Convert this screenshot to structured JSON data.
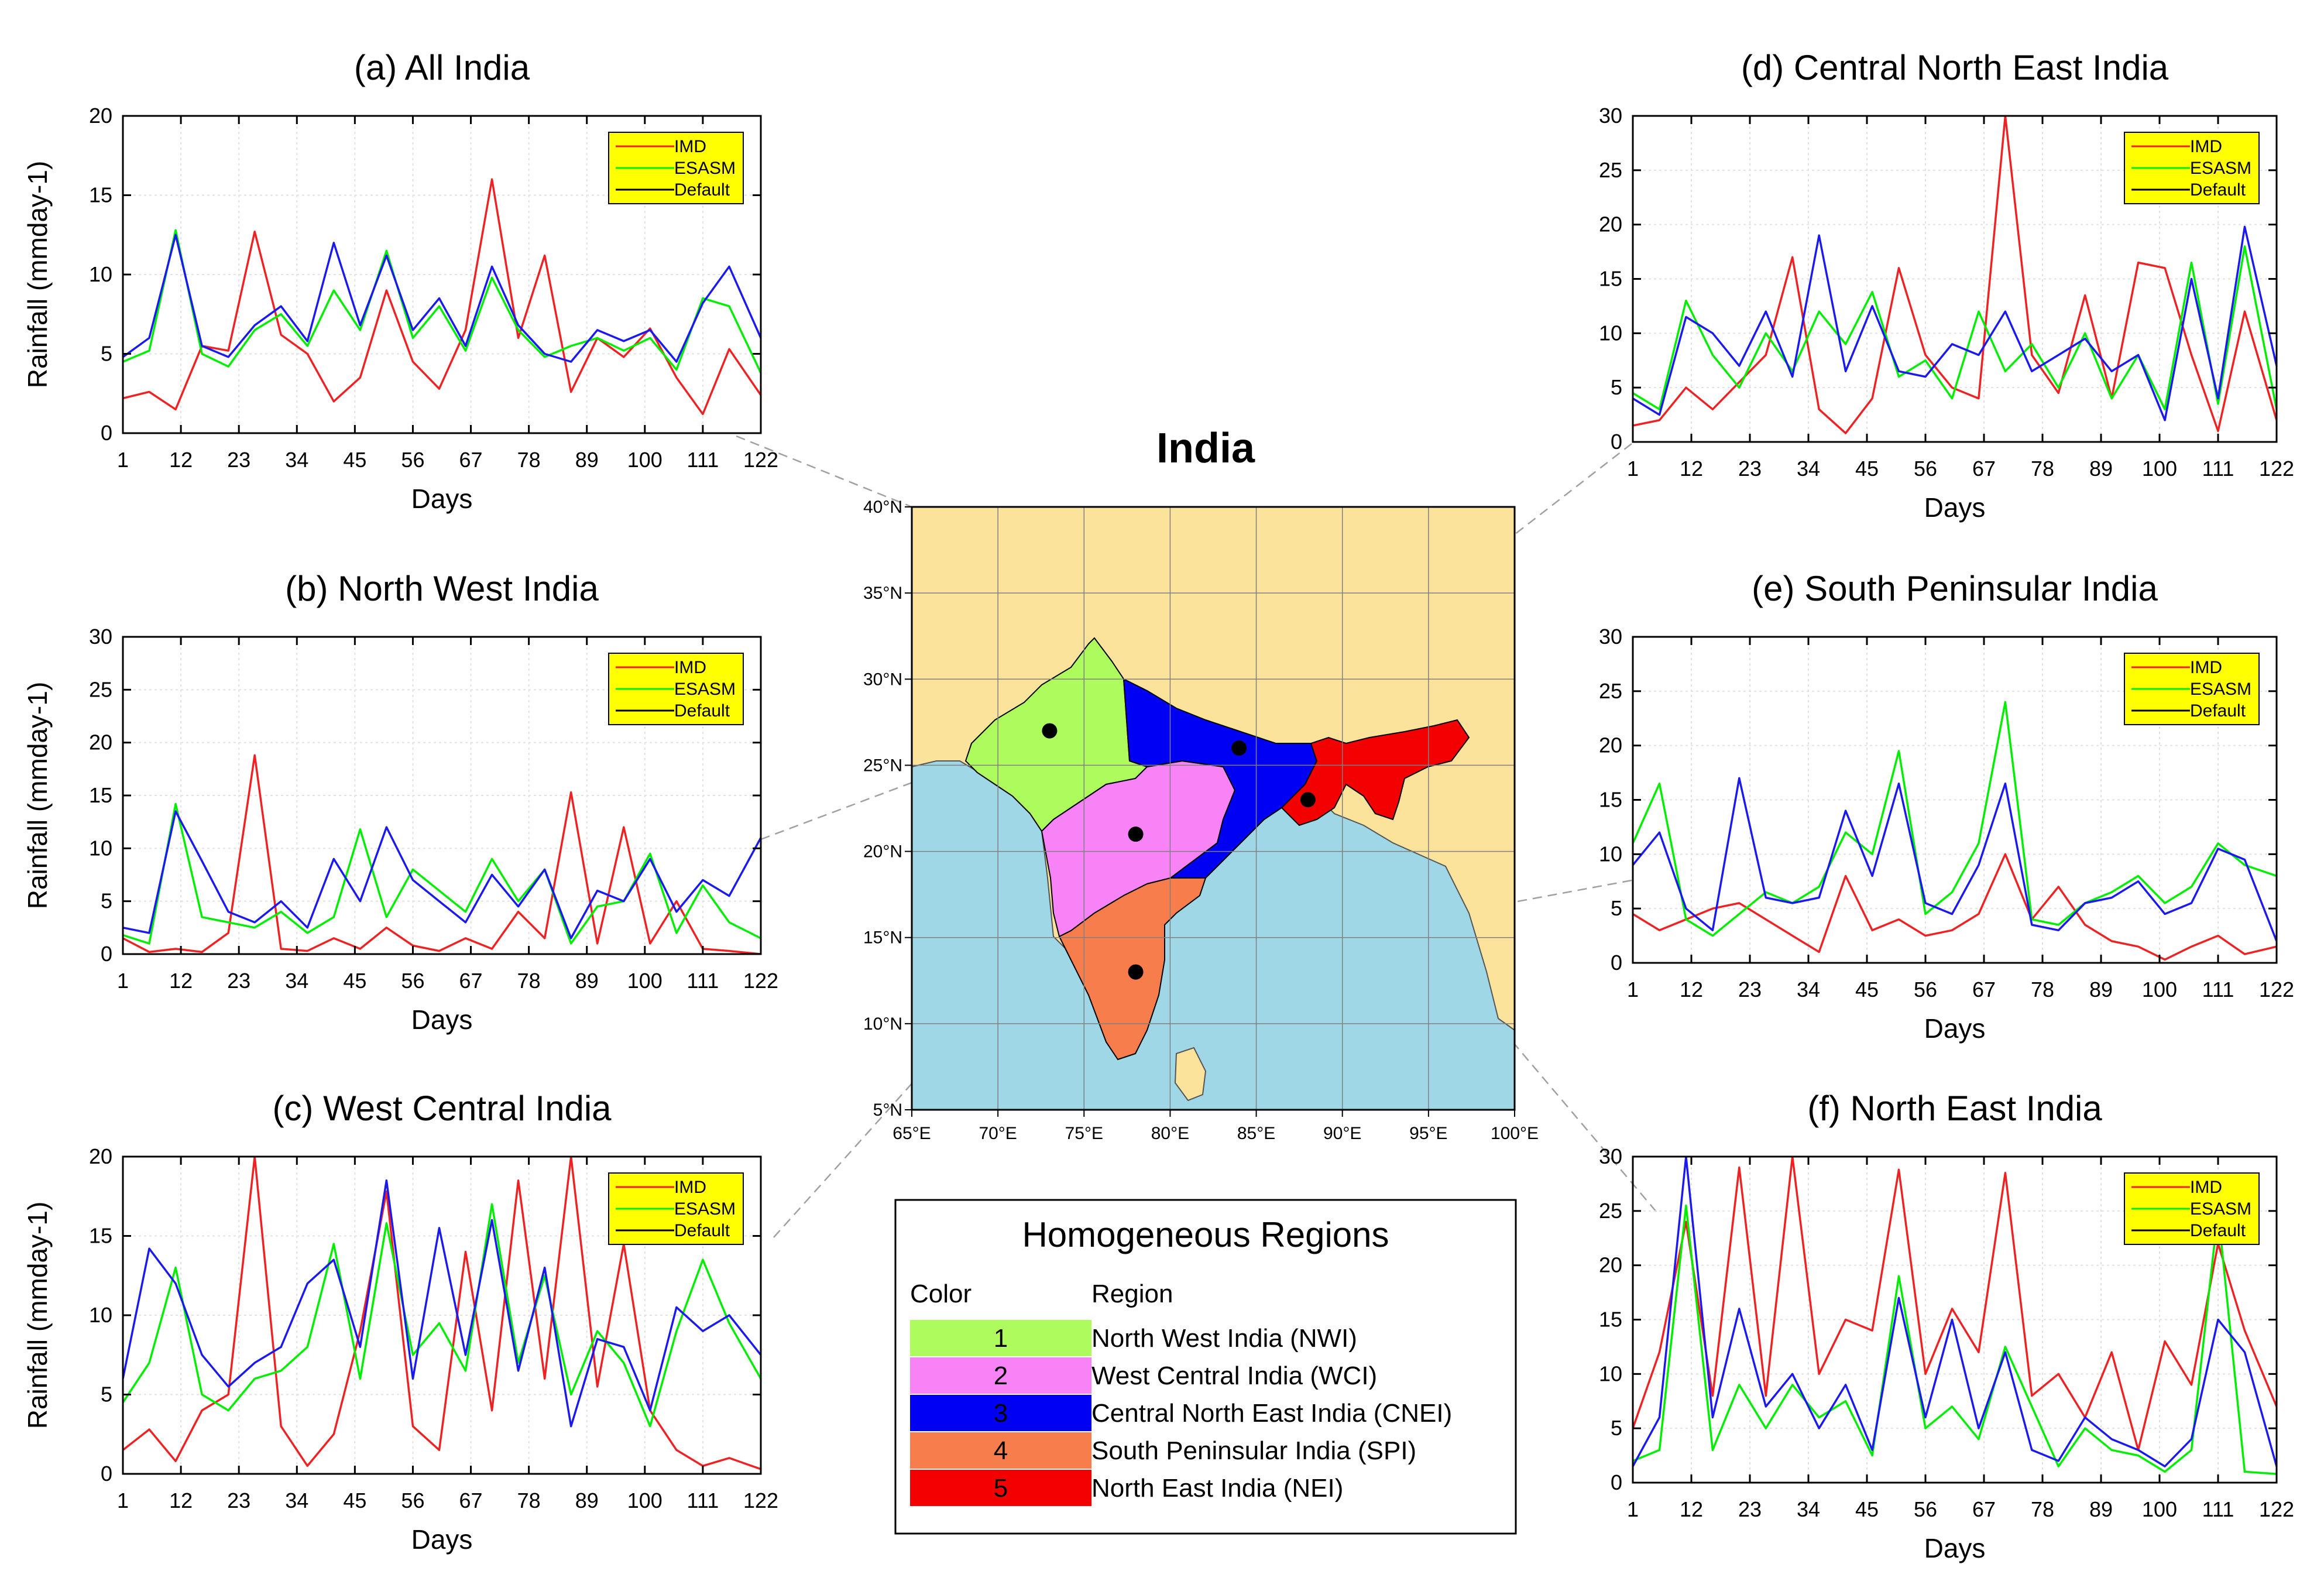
{
  "colors": {
    "imd": "#ee2222",
    "esasm": "#00ee00",
    "default": "#000000",
    "cnei_line": "#1a1aee",
    "legend_bg": "#ffff00",
    "land": "#fbe39c",
    "ocean": "#9fd7e6",
    "nwi": "#aefb5e",
    "wci": "#f783f7",
    "cnei": "#0000f2",
    "spi": "#f77d4d",
    "nei": "#f30000"
  },
  "legend": {
    "imd": "IMD",
    "esasm": "ESASM",
    "default": "Default"
  },
  "map": {
    "title": "India",
    "lon_labels": [
      "65°E",
      "70°E",
      "75°E",
      "80°E",
      "85°E",
      "90°E",
      "95°E",
      "100°E"
    ],
    "lat_labels": [
      "5°N",
      "10°N",
      "15°N",
      "20°N",
      "25°N",
      "30°N",
      "35°N",
      "40°N"
    ],
    "region_points": [
      {
        "region": "NWI",
        "lon": 73,
        "lat": 27
      },
      {
        "region": "WCI",
        "lon": 78,
        "lat": 21
      },
      {
        "region": "CNEI",
        "lon": 84,
        "lat": 26
      },
      {
        "region": "SPI",
        "lon": 78,
        "lat": 13
      },
      {
        "region": "NEI",
        "lon": 88,
        "lat": 23
      }
    ]
  },
  "regions_table": {
    "title": "Homogeneous Regions",
    "col_color": "Color",
    "col_region": "Region",
    "rows": [
      {
        "num": "1",
        "label": "North West India (NWI)",
        "color_key": "nwi"
      },
      {
        "num": "2",
        "label": "West Central India (WCI)",
        "color_key": "wci"
      },
      {
        "num": "3",
        "label": "Central North East India (CNEI)",
        "color_key": "cnei"
      },
      {
        "num": "4",
        "label": "South Peninsular India (SPI)",
        "color_key": "spi"
      },
      {
        "num": "5",
        "label": "North East India (NEI)",
        "color_key": "nei"
      }
    ]
  },
  "chart_data": [
    {
      "id": "a",
      "type": "line",
      "title": "(a) All India",
      "xlabel": "Days",
      "ylabel": "Rainfall (mmday-1)",
      "xlim": [
        1,
        122
      ],
      "ylim": [
        0,
        20
      ],
      "yticks": [
        0,
        5,
        10,
        15,
        20
      ],
      "xticks": [
        1,
        12,
        23,
        34,
        45,
        56,
        67,
        78,
        89,
        100,
        111,
        122
      ],
      "x": [
        1,
        6,
        11,
        16,
        21,
        26,
        31,
        36,
        41,
        46,
        51,
        56,
        61,
        66,
        71,
        76,
        81,
        86,
        91,
        96,
        101,
        106,
        111,
        116,
        122
      ],
      "series": [
        {
          "name": "IMD",
          "values": [
            2.2,
            2.6,
            1.5,
            5.5,
            5.2,
            12.7,
            6.2,
            5.0,
            2.0,
            3.5,
            9.0,
            4.5,
            2.8,
            6.5,
            16.0,
            6.0,
            11.2,
            2.6,
            6.0,
            4.8,
            6.6,
            3.5,
            1.2,
            5.3,
            2.4
          ]
        },
        {
          "name": "ESASM",
          "values": [
            4.5,
            5.2,
            12.8,
            5.0,
            4.2,
            6.5,
            7.5,
            5.5,
            9.0,
            6.5,
            11.5,
            6.0,
            8.0,
            5.2,
            9.8,
            6.5,
            4.8,
            5.5,
            6.0,
            5.2,
            6.0,
            4.0,
            8.5,
            8.0,
            3.8
          ]
        },
        {
          "name": "Default",
          "values": [
            4.8,
            6.0,
            12.5,
            5.5,
            4.8,
            6.8,
            8.0,
            5.8,
            12.0,
            6.8,
            11.2,
            6.5,
            8.5,
            5.5,
            10.5,
            6.8,
            5.0,
            4.5,
            6.5,
            5.8,
            6.5,
            4.5,
            8.2,
            10.5,
            6.0
          ]
        }
      ]
    },
    {
      "id": "b",
      "type": "line",
      "title": "(b) North West India",
      "xlabel": "Days",
      "ylabel": "Rainfall (mmday-1)",
      "xlim": [
        1,
        122
      ],
      "ylim": [
        0,
        30
      ],
      "yticks": [
        0,
        5,
        10,
        15,
        20,
        25,
        30
      ],
      "xticks": [
        1,
        12,
        23,
        34,
        45,
        56,
        67,
        78,
        89,
        100,
        111,
        122
      ],
      "x": [
        1,
        6,
        11,
        16,
        21,
        26,
        31,
        36,
        41,
        46,
        51,
        56,
        61,
        66,
        71,
        76,
        81,
        86,
        91,
        96,
        101,
        106,
        111,
        116,
        122
      ],
      "series": [
        {
          "name": "IMD",
          "values": [
            1.5,
            0.2,
            0.5,
            0.2,
            2.0,
            18.8,
            0.5,
            0.3,
            1.5,
            0.5,
            2.5,
            0.8,
            0.3,
            1.5,
            0.5,
            4.0,
            1.5,
            15.3,
            1.0,
            12.0,
            1.0,
            5.0,
            0.5,
            0.3,
            0.0
          ]
        },
        {
          "name": "ESASM",
          "values": [
            1.8,
            1.0,
            14.2,
            3.5,
            3.0,
            2.5,
            4.0,
            2.0,
            3.5,
            11.8,
            3.5,
            8.0,
            6.0,
            4.0,
            9.0,
            5.0,
            8.0,
            1.0,
            4.5,
            5.0,
            9.5,
            2.0,
            6.5,
            3.0,
            1.5
          ]
        },
        {
          "name": "Default",
          "values": [
            2.5,
            2.0,
            13.5,
            8.8,
            4.0,
            3.0,
            5.0,
            2.5,
            9.0,
            5.0,
            12.0,
            7.0,
            5.0,
            3.0,
            7.5,
            4.5,
            8.0,
            1.5,
            6.0,
            5.0,
            9.0,
            4.0,
            7.0,
            5.5,
            11.0
          ]
        }
      ]
    },
    {
      "id": "c",
      "type": "line",
      "title": "(c) West Central India",
      "xlabel": "Days",
      "ylabel": "Rainfall (mmday-1)",
      "xlim": [
        1,
        122
      ],
      "ylim": [
        0,
        20
      ],
      "yticks": [
        0,
        5,
        10,
        15,
        20
      ],
      "xticks": [
        1,
        12,
        23,
        34,
        45,
        56,
        67,
        78,
        89,
        100,
        111,
        122
      ],
      "x": [
        1,
        6,
        11,
        16,
        21,
        26,
        31,
        36,
        41,
        46,
        51,
        56,
        61,
        66,
        71,
        76,
        81,
        86,
        91,
        96,
        101,
        106,
        111,
        116,
        122
      ],
      "series": [
        {
          "name": "IMD",
          "values": [
            1.5,
            2.8,
            0.8,
            4.0,
            5.0,
            20.0,
            3.0,
            0.5,
            2.5,
            9.0,
            17.8,
            3.0,
            1.5,
            14.0,
            4.0,
            18.5,
            6.0,
            20.0,
            5.5,
            14.5,
            4.0,
            1.5,
            0.5,
            1.0,
            0.3
          ]
        },
        {
          "name": "ESASM",
          "values": [
            4.5,
            7.0,
            13.0,
            5.0,
            4.0,
            6.0,
            6.5,
            8.0,
            14.5,
            6.0,
            15.8,
            7.5,
            9.5,
            6.5,
            17.0,
            7.0,
            12.5,
            5.0,
            9.0,
            7.0,
            3.0,
            9.0,
            13.5,
            9.5,
            6.0
          ]
        },
        {
          "name": "Default",
          "values": [
            6.0,
            14.2,
            12.0,
            7.5,
            5.5,
            7.0,
            8.0,
            12.0,
            13.5,
            8.0,
            18.5,
            6.0,
            15.5,
            7.5,
            16.0,
            6.5,
            13.0,
            3.0,
            8.5,
            8.0,
            4.0,
            10.5,
            9.0,
            10.0,
            7.5
          ]
        }
      ]
    },
    {
      "id": "d",
      "type": "line",
      "title": "(d) Central North East India",
      "xlabel": "Days",
      "ylabel": "",
      "xlim": [
        1,
        122
      ],
      "ylim": [
        0,
        30
      ],
      "yticks": [
        0,
        5,
        10,
        15,
        20,
        25,
        30
      ],
      "xticks": [
        1,
        12,
        23,
        34,
        45,
        56,
        67,
        78,
        89,
        100,
        111,
        122
      ],
      "x": [
        1,
        6,
        11,
        16,
        21,
        26,
        31,
        36,
        41,
        46,
        51,
        56,
        61,
        66,
        71,
        76,
        81,
        86,
        91,
        96,
        101,
        106,
        111,
        116,
        122
      ],
      "series": [
        {
          "name": "IMD",
          "values": [
            1.5,
            2.0,
            5.0,
            3.0,
            5.5,
            8.0,
            17.0,
            3.0,
            0.8,
            4.0,
            16.0,
            8.0,
            5.0,
            4.0,
            30.0,
            8.0,
            4.5,
            13.5,
            4.0,
            16.5,
            16.0,
            8.0,
            1.0,
            12.0,
            2.0
          ]
        },
        {
          "name": "ESASM",
          "values": [
            4.5,
            3.0,
            13.0,
            8.0,
            5.0,
            10.0,
            6.5,
            12.0,
            9.0,
            13.8,
            6.0,
            7.5,
            4.0,
            12.0,
            6.5,
            9.0,
            5.0,
            10.0,
            4.0,
            8.0,
            3.0,
            16.5,
            3.5,
            18.0,
            3.0
          ]
        },
        {
          "name": "Default",
          "values": [
            4.0,
            2.5,
            11.5,
            10.0,
            7.0,
            12.0,
            6.0,
            19.0,
            6.5,
            12.5,
            6.5,
            6.0,
            9.0,
            8.0,
            12.0,
            6.5,
            8.0,
            9.5,
            6.5,
            8.0,
            2.0,
            15.0,
            4.0,
            19.8,
            7.0
          ]
        }
      ]
    },
    {
      "id": "e",
      "type": "line",
      "title": "(e) South Peninsular India",
      "xlabel": "Days",
      "ylabel": "",
      "xlim": [
        1,
        122
      ],
      "ylim": [
        0,
        30
      ],
      "yticks": [
        0,
        5,
        10,
        15,
        20,
        25,
        30
      ],
      "xticks": [
        1,
        12,
        23,
        34,
        45,
        56,
        67,
        78,
        89,
        100,
        111,
        122
      ],
      "x": [
        1,
        6,
        11,
        16,
        21,
        26,
        31,
        36,
        41,
        46,
        51,
        56,
        61,
        66,
        71,
        76,
        81,
        86,
        91,
        96,
        101,
        106,
        111,
        116,
        122
      ],
      "series": [
        {
          "name": "IMD",
          "values": [
            4.5,
            3.0,
            4.0,
            5.0,
            5.5,
            4.0,
            2.5,
            1.0,
            8.0,
            3.0,
            4.0,
            2.5,
            3.0,
            4.5,
            10.0,
            4.0,
            7.0,
            3.5,
            2.0,
            1.5,
            0.3,
            1.5,
            2.5,
            0.8,
            1.5
          ]
        },
        {
          "name": "ESASM",
          "values": [
            11.0,
            16.5,
            4.0,
            2.5,
            4.5,
            6.5,
            5.5,
            7.0,
            12.0,
            10.0,
            19.5,
            4.5,
            6.5,
            11.0,
            24.0,
            4.0,
            3.5,
            5.5,
            6.5,
            8.0,
            5.5,
            7.0,
            11.0,
            9.0,
            8.0
          ]
        },
        {
          "name": "Default",
          "values": [
            9.0,
            12.0,
            5.0,
            3.0,
            17.0,
            6.0,
            5.5,
            6.0,
            14.0,
            8.0,
            16.5,
            5.5,
            4.5,
            9.0,
            16.5,
            3.5,
            3.0,
            5.5,
            6.0,
            7.5,
            4.5,
            5.5,
            10.5,
            9.5,
            2.0
          ]
        }
      ]
    },
    {
      "id": "f",
      "type": "line",
      "title": "(f) North East India",
      "xlabel": "Days",
      "ylabel": "",
      "xlim": [
        1,
        122
      ],
      "ylim": [
        0,
        30
      ],
      "yticks": [
        0,
        5,
        10,
        15,
        20,
        25,
        30
      ],
      "xticks": [
        1,
        12,
        23,
        34,
        45,
        56,
        67,
        78,
        89,
        100,
        111,
        122
      ],
      "x": [
        1,
        6,
        11,
        16,
        21,
        26,
        31,
        36,
        41,
        46,
        51,
        56,
        61,
        66,
        71,
        76,
        81,
        86,
        91,
        96,
        101,
        106,
        111,
        116,
        122
      ],
      "series": [
        {
          "name": "IMD",
          "values": [
            5.0,
            12.0,
            24.0,
            8.0,
            29.0,
            8.0,
            30.0,
            10.0,
            15.0,
            14.0,
            28.8,
            10.0,
            16.0,
            12.0,
            28.5,
            8.0,
            10.0,
            6.0,
            12.0,
            3.0,
            13.0,
            9.0,
            22.0,
            14.0,
            7.0
          ]
        },
        {
          "name": "ESASM",
          "values": [
            2.0,
            3.0,
            25.5,
            3.0,
            9.0,
            5.0,
            9.0,
            6.0,
            7.5,
            2.5,
            19.0,
            5.0,
            7.0,
            4.0,
            12.5,
            7.0,
            1.5,
            5.0,
            3.0,
            2.5,
            1.0,
            3.0,
            25.0,
            1.0,
            0.8
          ]
        },
        {
          "name": "Default",
          "values": [
            1.5,
            6.0,
            30.0,
            6.0,
            16.0,
            7.0,
            10.0,
            5.0,
            9.0,
            3.0,
            17.0,
            6.0,
            15.0,
            5.0,
            12.0,
            3.0,
            2.0,
            6.0,
            4.0,
            3.0,
            1.5,
            4.0,
            15.0,
            12.0,
            1.5
          ]
        }
      ]
    }
  ]
}
